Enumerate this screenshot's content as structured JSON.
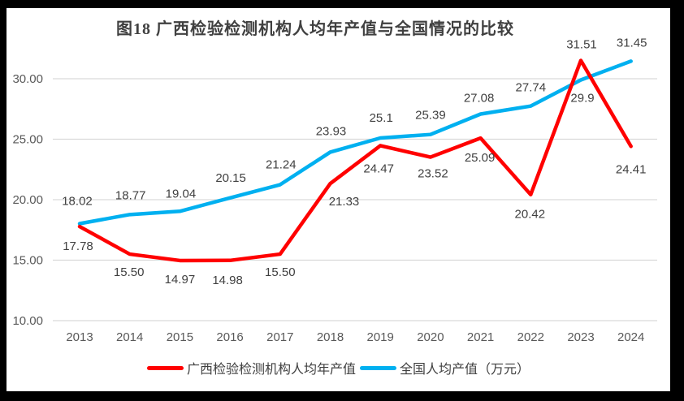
{
  "frame": {
    "border_color": "#000000",
    "canvas_background": "#ffffff"
  },
  "chart_data": {
    "type": "line",
    "title": "图18 广西检验检测机构人均年产值与全国情况的比较",
    "categories": [
      "2013",
      "2014",
      "2015",
      "2016",
      "2017",
      "2018",
      "2019",
      "2020",
      "2021",
      "2022",
      "2023",
      "2024"
    ],
    "series": [
      {
        "name": "广西检验检测机构人均年产值",
        "color": "#FF0000",
        "values": [
          17.78,
          15.5,
          14.97,
          14.98,
          15.5,
          21.33,
          24.47,
          23.52,
          25.09,
          20.42,
          31.51,
          24.41
        ],
        "labels": [
          "17.78",
          "15.50",
          "14.97",
          "14.98",
          "15.50",
          "21.33",
          "24.47",
          "23.52",
          "25.09",
          "20.42",
          "31.51",
          "24.41"
        ]
      },
      {
        "name": "全国人均产值（万元）",
        "color": "#00B0F0",
        "values": [
          18.02,
          18.77,
          19.04,
          20.15,
          21.24,
          23.93,
          25.1,
          25.39,
          27.08,
          27.74,
          29.9,
          31.45
        ],
        "labels": [
          "18.02",
          "18.77",
          "19.04",
          "20.15",
          "21.24",
          "23.93",
          "25.1",
          "25.39",
          "27.08",
          "27.74",
          "29.9",
          "31.45"
        ]
      }
    ],
    "y_axis": {
      "ticks": [
        {
          "value": 10,
          "label": "10.00"
        },
        {
          "value": 15,
          "label": "15.00"
        },
        {
          "value": 20,
          "label": "20.00"
        },
        {
          "value": 25,
          "label": "25.00"
        },
        {
          "value": 30,
          "label": "30.00"
        }
      ],
      "range": [
        10,
        32.5
      ]
    },
    "xlabel": "",
    "ylabel": "",
    "grid": true,
    "legend_position": "bottom",
    "gridline_color": "#D9D9D9",
    "axis_text_color": "#595959",
    "label_text_color": "#404040"
  }
}
